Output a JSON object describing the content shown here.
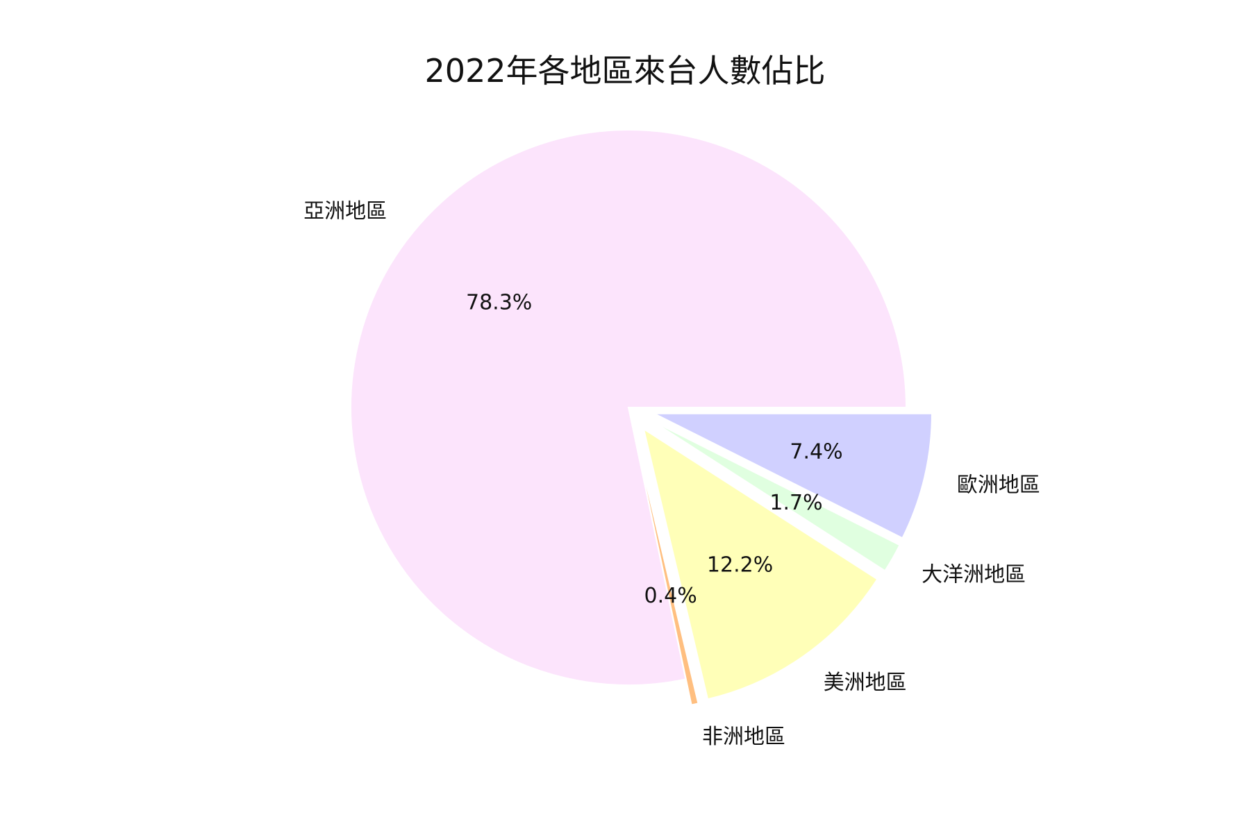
{
  "chart_data": {
    "type": "pie",
    "title": "2022年各地區來台人數佔比",
    "start_angle_deg": 0,
    "direction": "clockwise",
    "slices": [
      {
        "label": "歐洲地區",
        "value": 7.4,
        "pct_label": "7.4%",
        "color": "#d0d0ff",
        "exploded": true
      },
      {
        "label": "大洋洲地區",
        "value": 1.7,
        "pct_label": "1.7%",
        "color": "#e0ffe0",
        "exploded": true
      },
      {
        "label": "美洲地區",
        "value": 12.2,
        "pct_label": "12.2%",
        "color": "#ffffb8",
        "exploded": true
      },
      {
        "label": "非洲地區",
        "value": 0.4,
        "pct_label": "0.4%",
        "color": "#ffbf80",
        "exploded": true
      },
      {
        "label": "亞洲地區",
        "value": 78.3,
        "pct_label": "78.3%",
        "color": "#fce4fc",
        "exploded": false
      }
    ]
  }
}
